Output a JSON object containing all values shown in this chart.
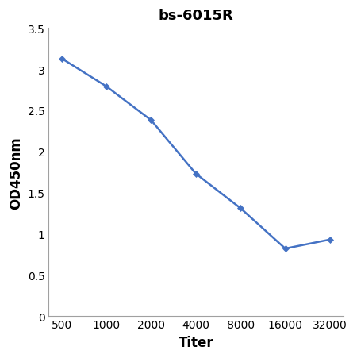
{
  "title": "bs-6015R",
  "xlabel": "Titer",
  "ylabel": "OD450nm",
  "y_values": [
    3.13,
    2.79,
    2.38,
    1.73,
    1.31,
    0.82,
    0.93
  ],
  "x_positions": [
    0,
    1,
    2,
    3,
    4,
    5,
    6
  ],
  "line_color": "#4472C4",
  "marker": "D",
  "marker_size": 4,
  "ylim": [
    0,
    3.5
  ],
  "yticks": [
    0,
    0.5,
    1,
    1.5,
    2,
    2.5,
    3,
    3.5
  ],
  "xtick_labels": [
    "500",
    "1000",
    "2000",
    "4000",
    "8000",
    "16000",
    "32000"
  ],
  "title_fontsize": 13,
  "axis_label_fontsize": 12,
  "tick_fontsize": 10,
  "background_color": "#ffffff",
  "spine_color": "#a0a0a0"
}
